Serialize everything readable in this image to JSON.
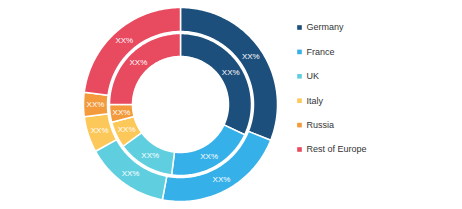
{
  "chart_data": {
    "type": "donut",
    "categories": [
      "Germany",
      "France",
      "UK",
      "Italy",
      "Russia",
      "Rest of Europe"
    ],
    "colors": [
      "#1d4f7c",
      "#36b0e8",
      "#5fcfe0",
      "#fcc85a",
      "#f29a3c",
      "#e84a5f"
    ],
    "series": [
      {
        "values": [
          31,
          22,
          14,
          6,
          4,
          23
        ],
        "value_labels": [
          "XX%",
          "XX%",
          "XX%",
          "XX%",
          "XX%",
          "XX%"
        ]
      },
      {
        "values": [
          32,
          20,
          13,
          6,
          4,
          25
        ],
        "value_labels": [
          "XX%",
          "XX%",
          "XX%",
          "XX%",
          "XX%",
          "XX%"
        ]
      }
    ],
    "data_labels": true,
    "legend": "right"
  }
}
